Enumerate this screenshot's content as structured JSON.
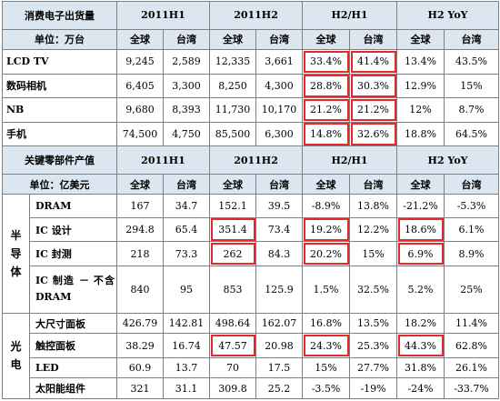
{
  "header1": {
    "title": "消费电子出货量",
    "unit": "单位：万台",
    "periods": [
      "2011H1",
      "2011H2",
      "H2/H1",
      "H2 YoY"
    ],
    "cols": [
      "全球",
      "台湾",
      "全球",
      "台湾",
      "全球",
      "台湾",
      "全球",
      "台湾"
    ]
  },
  "consumer_rows": [
    {
      "name": "LCD TV",
      "values": [
        "9,245",
        "2,589",
        "12,335",
        "3,661",
        "33.4%",
        "41.4%",
        "13.4%",
        "43.5%"
      ]
    },
    {
      "name": "数码相机",
      "values": [
        "6,405",
        "3,300",
        "8,250",
        "4,300",
        "28.8%",
        "30.3%",
        "12.9%",
        "15%"
      ]
    },
    {
      "name": "NB",
      "values": [
        "9,680",
        "8,393",
        "11,730",
        "10,170",
        "21.2%",
        "21.2%",
        "12%",
        "8.7%"
      ]
    },
    {
      "name": "手机",
      "values": [
        "74,500",
        "4,750",
        "85,500",
        "6,300",
        "14.8%",
        "32.6%",
        "18.8%",
        "64.5%"
      ]
    }
  ],
  "header2": {
    "title": "关键零部件产值",
    "unit": "单位：亿美元",
    "periods": [
      "2011H1",
      "2011H2",
      "H2/H1",
      "H2 YoY"
    ],
    "cols": [
      "全球",
      "台湾",
      "全球",
      "台湾",
      "全球",
      "台湾",
      "全球",
      "台湾"
    ]
  },
  "groups": [
    {
      "name": "半导体",
      "rows": [
        {
          "name": "DRAM",
          "values": [
            "167",
            "34.7",
            "152.1",
            "39.5",
            "-8.9%",
            "13.8%",
            "-21.2%",
            "-5.3%"
          ]
        },
        {
          "name": "IC 设计",
          "values": [
            "294.8",
            "65.4",
            "351.4",
            "73.4",
            "19.2%",
            "12.2%",
            "18.6%",
            "6.1%"
          ]
        },
        {
          "name": "IC 封测",
          "values": [
            "218",
            "73.3",
            "262",
            "84.3",
            "20.2%",
            "15%",
            "6.9%",
            "8.9%"
          ]
        },
        {
          "name": "IC 制造 － 不含 DRAM",
          "values": [
            "840",
            "95",
            "853",
            "125.9",
            "1.5%",
            "32.5%",
            "5.2%",
            "25%"
          ]
        }
      ]
    },
    {
      "name": "光电",
      "rows": [
        {
          "name": "大尺寸面板",
          "values": [
            "426.79",
            "142.81",
            "498.64",
            "162.07",
            "16.8%",
            "13.5%",
            "18.2%",
            "11.4%"
          ]
        },
        {
          "name": "触控面板",
          "values": [
            "38.29",
            "16.74",
            "47.57",
            "20.98",
            "24.3%",
            "25.3%",
            "44.3%",
            "62.8%"
          ]
        },
        {
          "name": "LED",
          "values": [
            "60.9",
            "13.7",
            "70",
            "17.5",
            "15%",
            "27.7%",
            "31.8%",
            "26.1%"
          ]
        },
        {
          "name": "太阳能组件",
          "values": [
            "321",
            "31.1",
            "309.8",
            "25.2",
            "-3.5%",
            "-19%",
            "-24%",
            "-33.7%"
          ]
        }
      ]
    }
  ],
  "highlight_color": "#e3282c",
  "header_fill": "#dce6f1"
}
